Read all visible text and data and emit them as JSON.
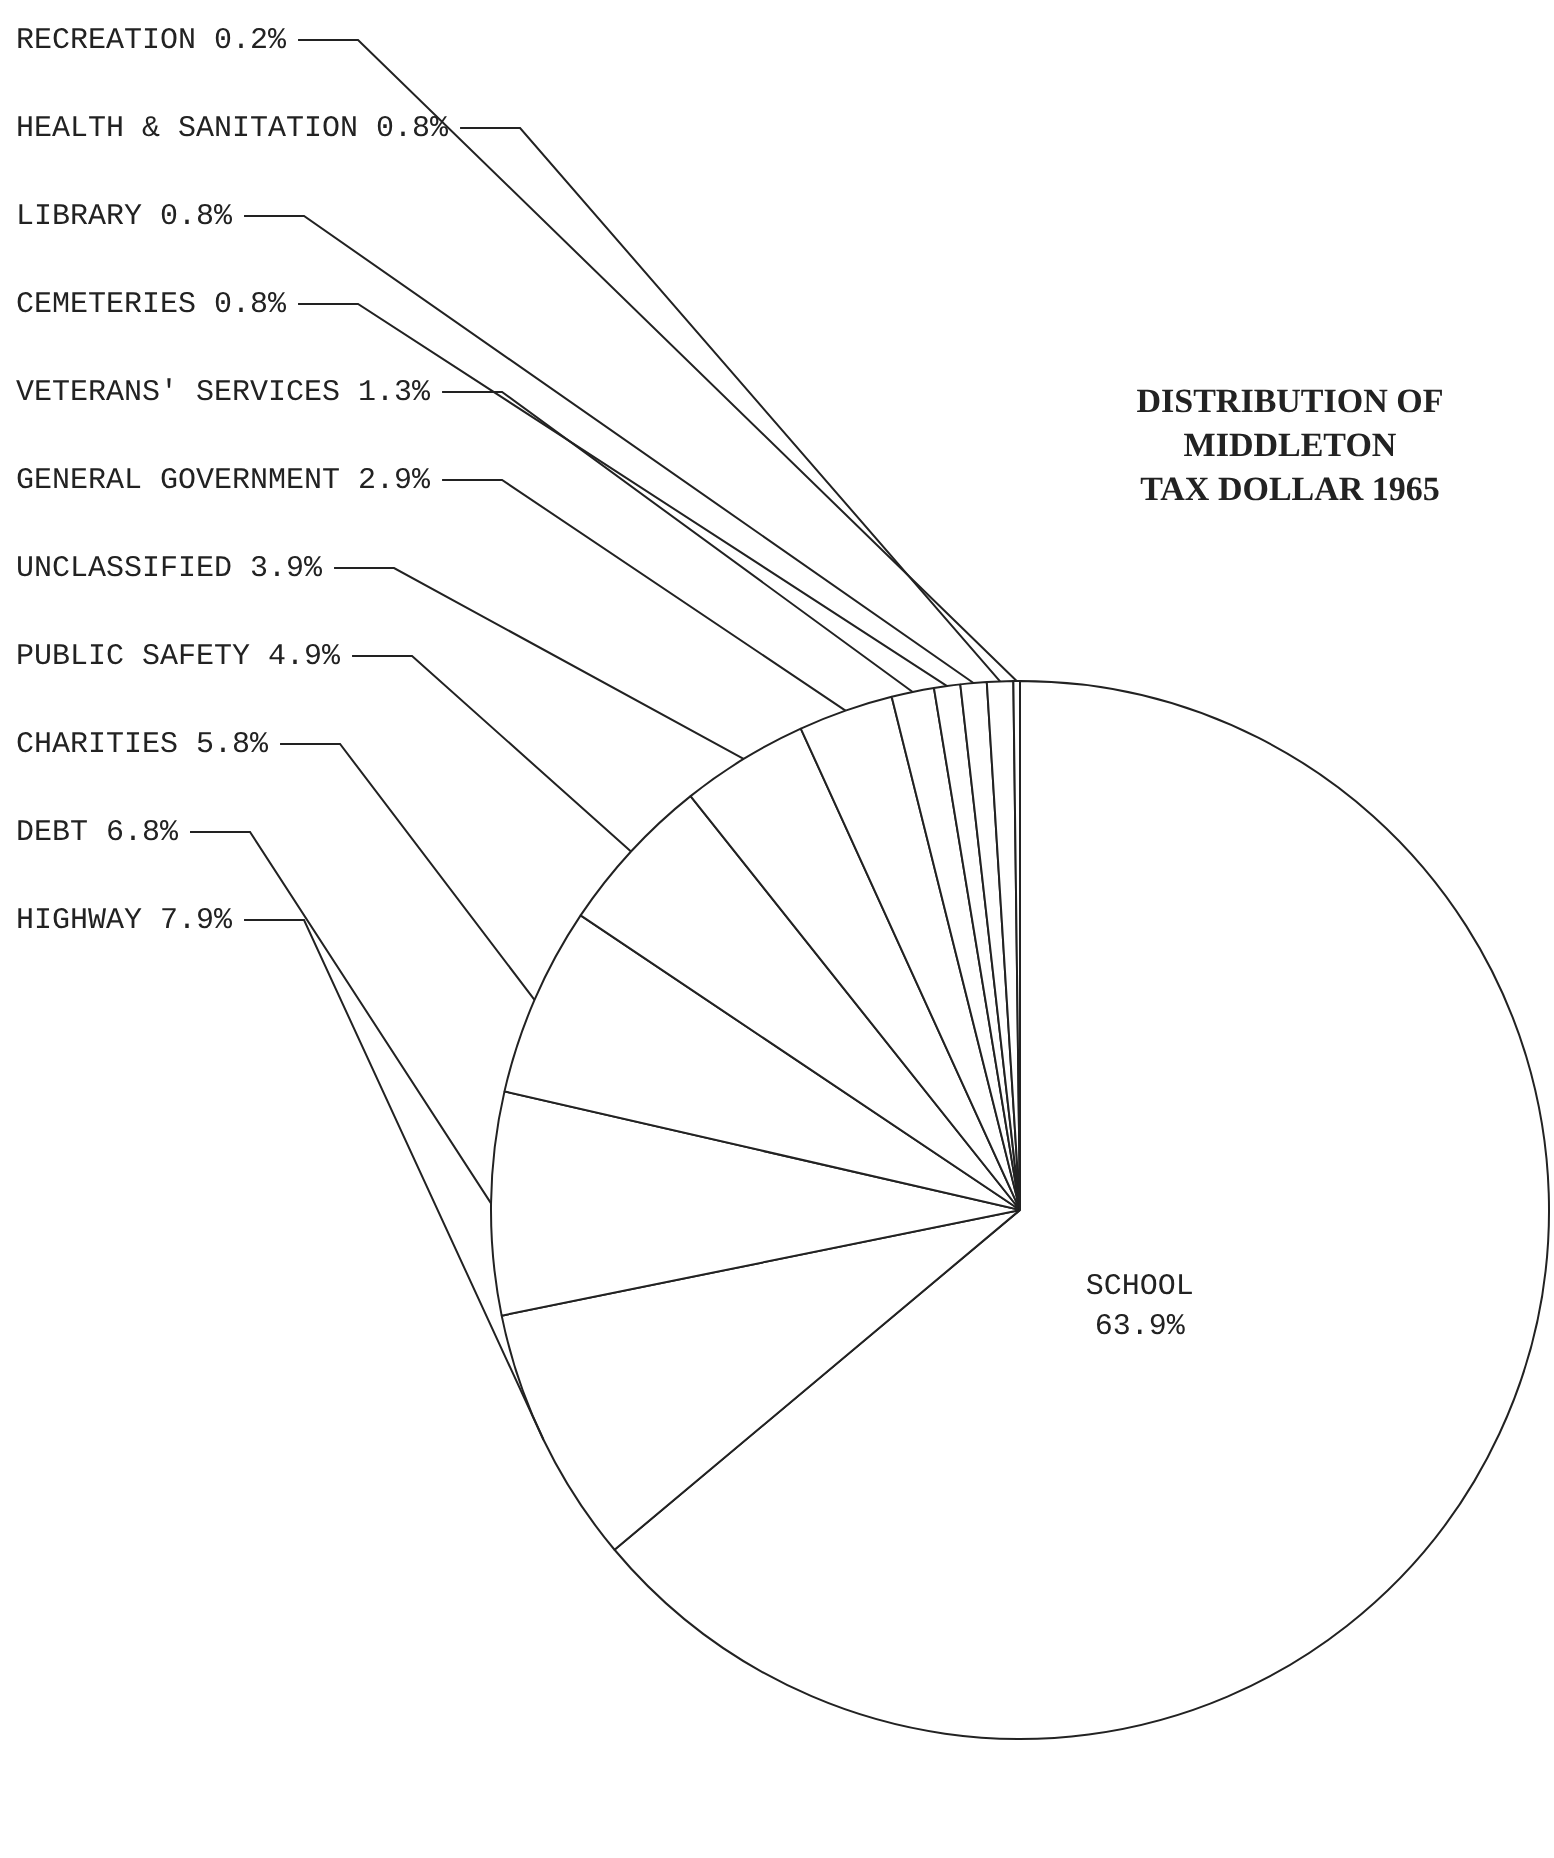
{
  "chart_data": {
    "type": "pie",
    "title": "DISTRIBUTION OF\nMIDDLETON\nTAX DOLLAR 1965",
    "categories": [
      "SCHOOL",
      "HIGHWAY",
      "DEBT",
      "CHARITIES",
      "PUBLIC SAFETY",
      "UNCLASSIFIED",
      "GENERAL GOVERNMENT",
      "VETERANS' SERVICES",
      "CEMETERIES",
      "LIBRARY",
      "HEALTH & SANITATION",
      "RECREATION"
    ],
    "values": [
      63.9,
      7.9,
      6.8,
      5.8,
      4.9,
      3.9,
      2.9,
      1.3,
      0.8,
      0.8,
      0.8,
      0.2
    ],
    "value_labels": [
      "63.9%",
      "7.9%",
      "6.8%",
      "5.8%",
      "4.9%",
      "3.9%",
      "2.9%",
      "1.3%",
      "0.8%",
      "0.8%",
      "0.8%",
      "0.2%"
    ],
    "colors": [
      "#ffffff",
      "#ffffff",
      "#ffffff",
      "#ffffff",
      "#ffffff",
      "#ffffff",
      "#ffffff",
      "#ffffff",
      "#ffffff",
      "#ffffff",
      "#ffffff",
      "#ffffff"
    ]
  }
}
